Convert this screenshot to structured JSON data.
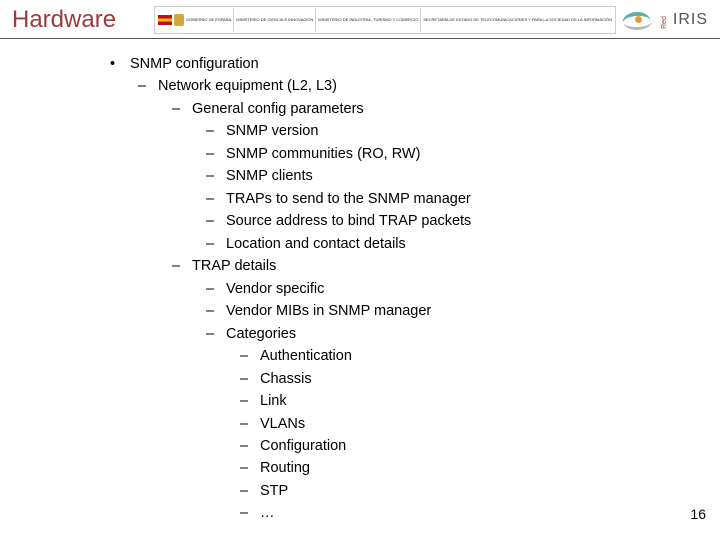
{
  "title": "Hardware",
  "pageNumber": "16",
  "logos": {
    "gov1": "GOBIERNO\nDE ESPAÑA",
    "gov2": "MINISTERIO\nDE CIENCIA\nE INNOVACIÓN",
    "gov3": "MINISTERIO\nDE INDUSTRIA, TURISMO\nY COMERCIO",
    "gov4": "SECRETARÍA DE ESTADO\nDE TELECOMUNICACIONES\nY PARA LA SOCIEDAD DE\nLA INFORMACIÓN",
    "irisRed": "Red",
    "irisMain": "IRIS"
  },
  "outline": {
    "l1": "SNMP configuration",
    "l2_1": "Network equipment (L2, L3)",
    "l3_1": "General config parameters",
    "l4_1": "SNMP version",
    "l4_2": "SNMP communities (RO, RW)",
    "l4_3": "SNMP clients",
    "l4_4": "TRAPs to send to the SNMP manager",
    "l4_5": "Source address to bind TRAP packets",
    "l4_6": "Location and contact details",
    "l3_2": "TRAP details",
    "l4_7": "Vendor specific",
    "l4_8": "Vendor MIBs in SNMP manager",
    "l4_9": "Categories",
    "l5_1": "Authentication",
    "l5_2": "Chassis",
    "l5_3": "Link",
    "l5_4": "VLANs",
    "l5_5": "Configuration",
    "l5_6": "Routing",
    "l5_7": "STP",
    "l5_8": "…"
  }
}
